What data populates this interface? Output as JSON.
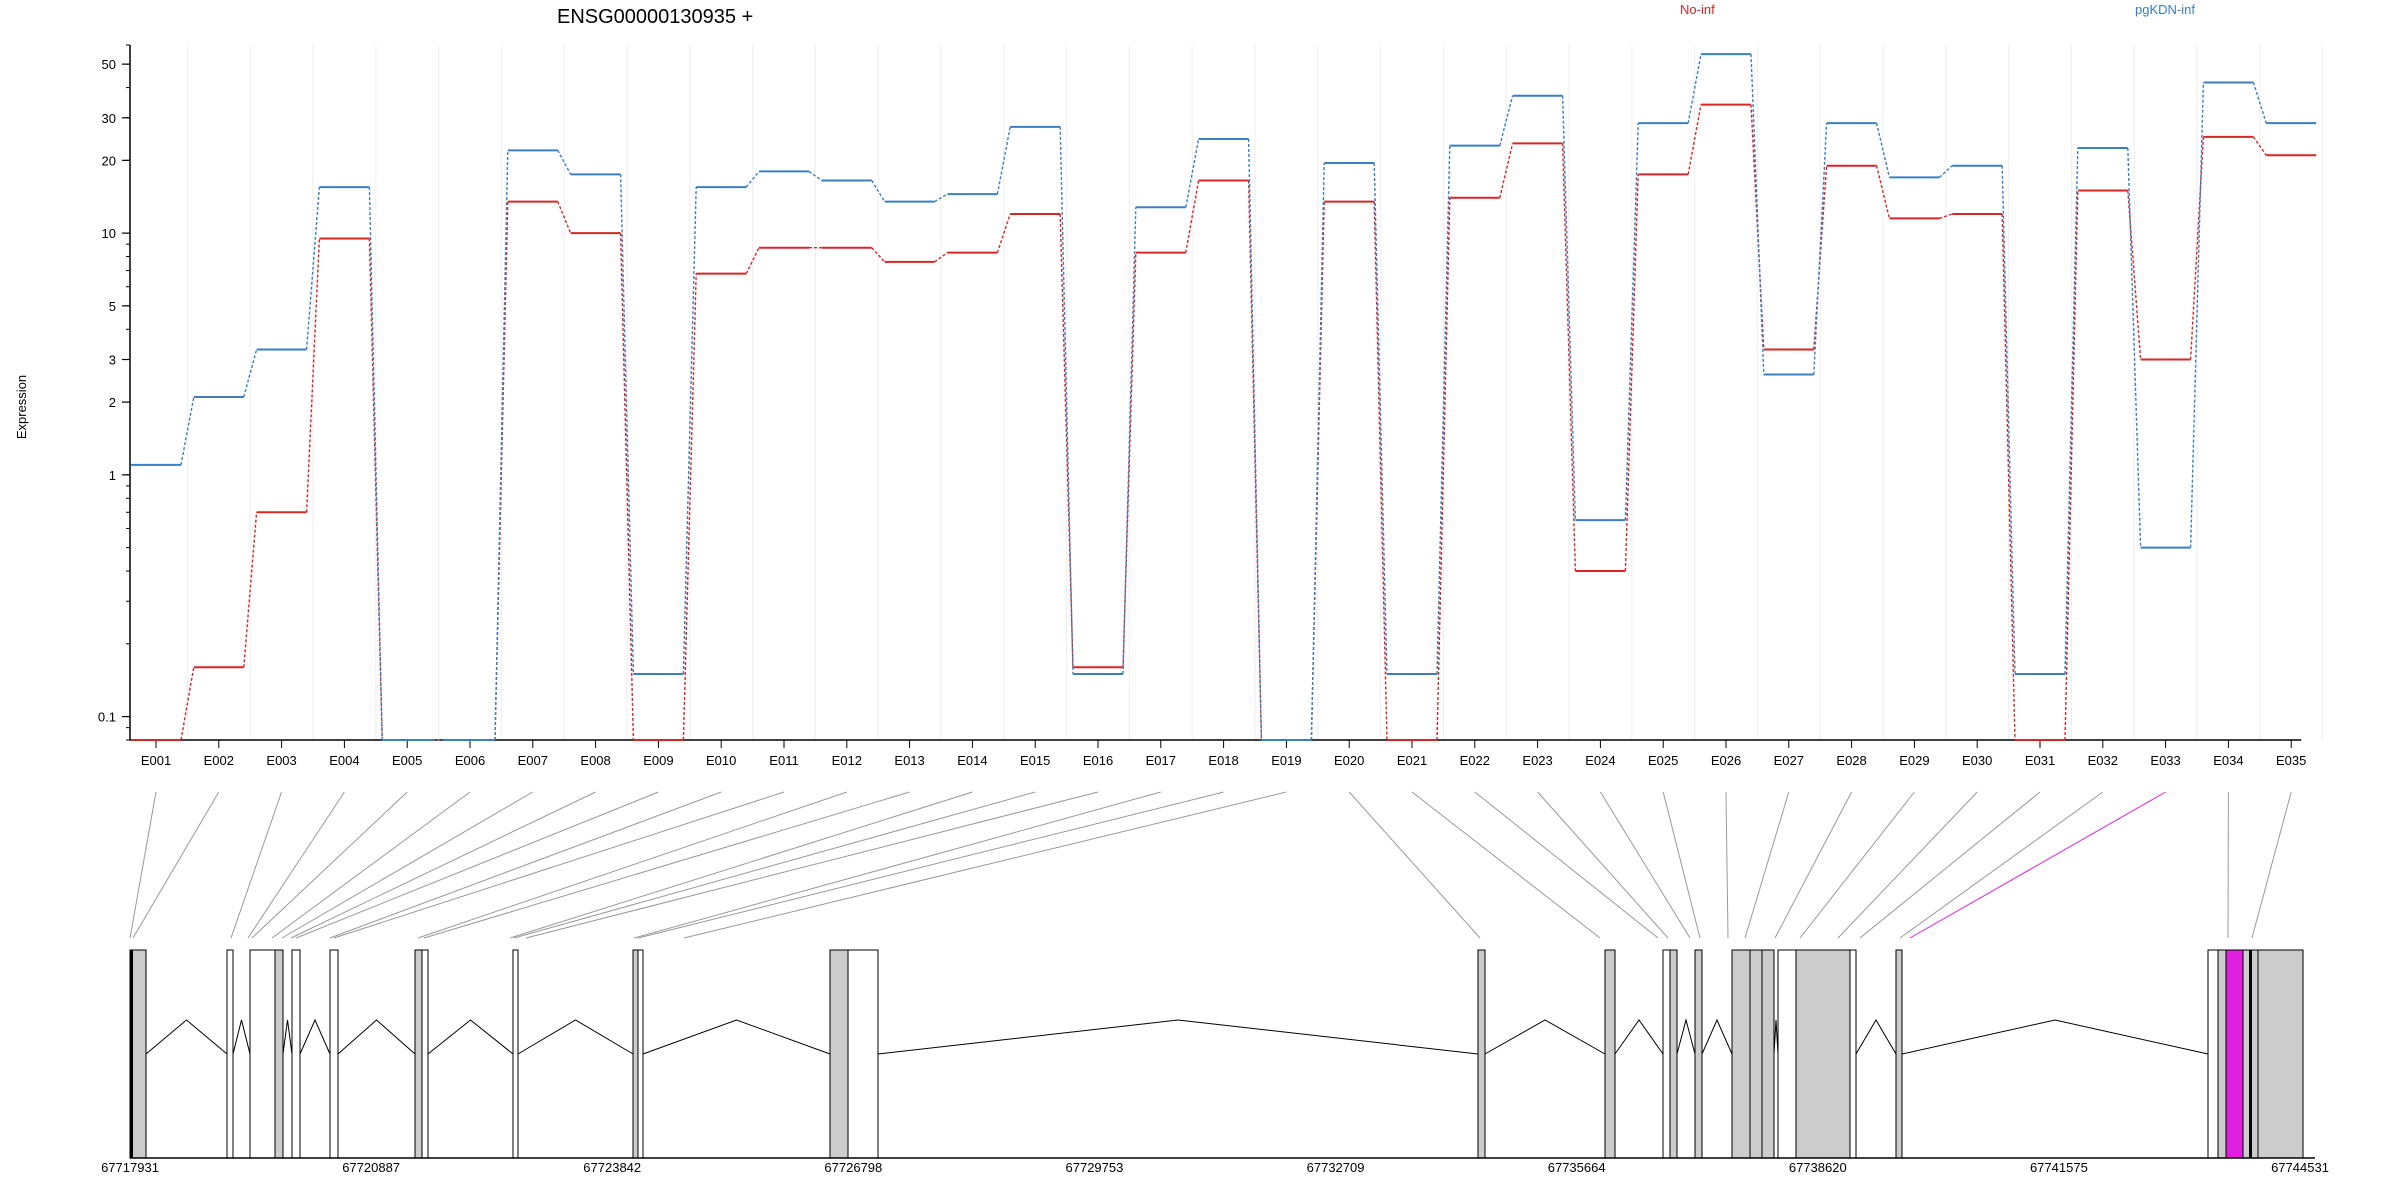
{
  "title": "ENSG00000130935 +",
  "legend": [
    {
      "label": "No-inf",
      "color": "#d62728"
    },
    {
      "label": "pgKDN-inf",
      "color": "#3a7fc1"
    }
  ],
  "chart_data": {
    "type": "line",
    "scale": "log",
    "ylabel": "Expression",
    "yticks": [
      0.1,
      1,
      2,
      3,
      5,
      10,
      20,
      30,
      50
    ],
    "ylim": [
      0.08,
      60
    ],
    "categories": [
      "E001",
      "E002",
      "E003",
      "E004",
      "E005",
      "E006",
      "E007",
      "E008",
      "E009",
      "E010",
      "E011",
      "E012",
      "E013",
      "E014",
      "E015",
      "E016",
      "E017",
      "E018",
      "E019",
      "E020",
      "E021",
      "E022",
      "E023",
      "E024",
      "E025",
      "E026",
      "E027",
      "E028",
      "E029",
      "E030",
      "E031",
      "E032",
      "E033",
      "E034",
      "E035"
    ],
    "series": [
      {
        "name": "No-inf",
        "color": "#d62728",
        "values": [
          0.08,
          0.16,
          0.7,
          9.5,
          0.08,
          0.08,
          13.5,
          10,
          0.08,
          6.8,
          8.7,
          8.7,
          7.6,
          8.3,
          12,
          0.16,
          8.3,
          16.5,
          0.08,
          13.5,
          0.08,
          14,
          23.5,
          0.4,
          17.5,
          34,
          3.3,
          19,
          11.5,
          12,
          0.08,
          15,
          3,
          25,
          21
        ]
      },
      {
        "name": "pgKDN-inf",
        "color": "#3a7fc1",
        "values": [
          1.1,
          2.1,
          3.3,
          15.5,
          0.08,
          0.08,
          22,
          17.5,
          0.15,
          15.5,
          18,
          16.5,
          13.5,
          14.5,
          27.5,
          0.15,
          12.8,
          24.5,
          0.08,
          19.5,
          0.15,
          23,
          37,
          0.65,
          28.5,
          55,
          2.6,
          28.5,
          17,
          19,
          0.15,
          22.5,
          0.5,
          42,
          28.5
        ]
      }
    ]
  },
  "gene_model": {
    "coord_labels": [
      "67717931",
      "67720887",
      "67723842",
      "67726798",
      "67729753",
      "67732709",
      "67735664",
      "67738620",
      "67741575",
      "67744531"
    ],
    "highlight_color": "#e020e0",
    "highlight_exon": "E033"
  }
}
